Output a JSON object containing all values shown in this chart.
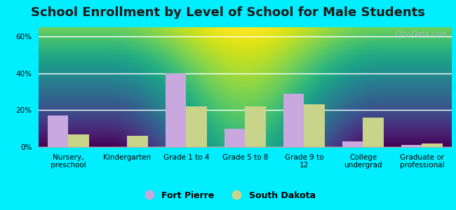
{
  "title": "School Enrollment by Level of School for Male Students",
  "categories": [
    "Nursery,\npreschool",
    "Kindergarten",
    "Grade 1 to 4",
    "Grade 5 to 8",
    "Grade 9 to\n12",
    "College\nundergrad",
    "Graduate or\nprofessional"
  ],
  "fort_pierre": [
    17,
    0,
    40,
    10,
    29,
    3,
    1
  ],
  "south_dakota": [
    7,
    6,
    22,
    22,
    23,
    16,
    2
  ],
  "fort_pierre_color": "#c9a8e0",
  "south_dakota_color": "#c8d48a",
  "background_outer": "#00eeff",
  "background_inner_top": "#f5fdf5",
  "background_inner_bottom": "#d8f0d8",
  "yticks": [
    0,
    20,
    40,
    60
  ],
  "ylim": [
    0,
    65
  ],
  "bar_width": 0.35,
  "title_fontsize": 13,
  "tick_fontsize": 7.5,
  "legend_fontsize": 9,
  "watermark": "City-Data.com"
}
